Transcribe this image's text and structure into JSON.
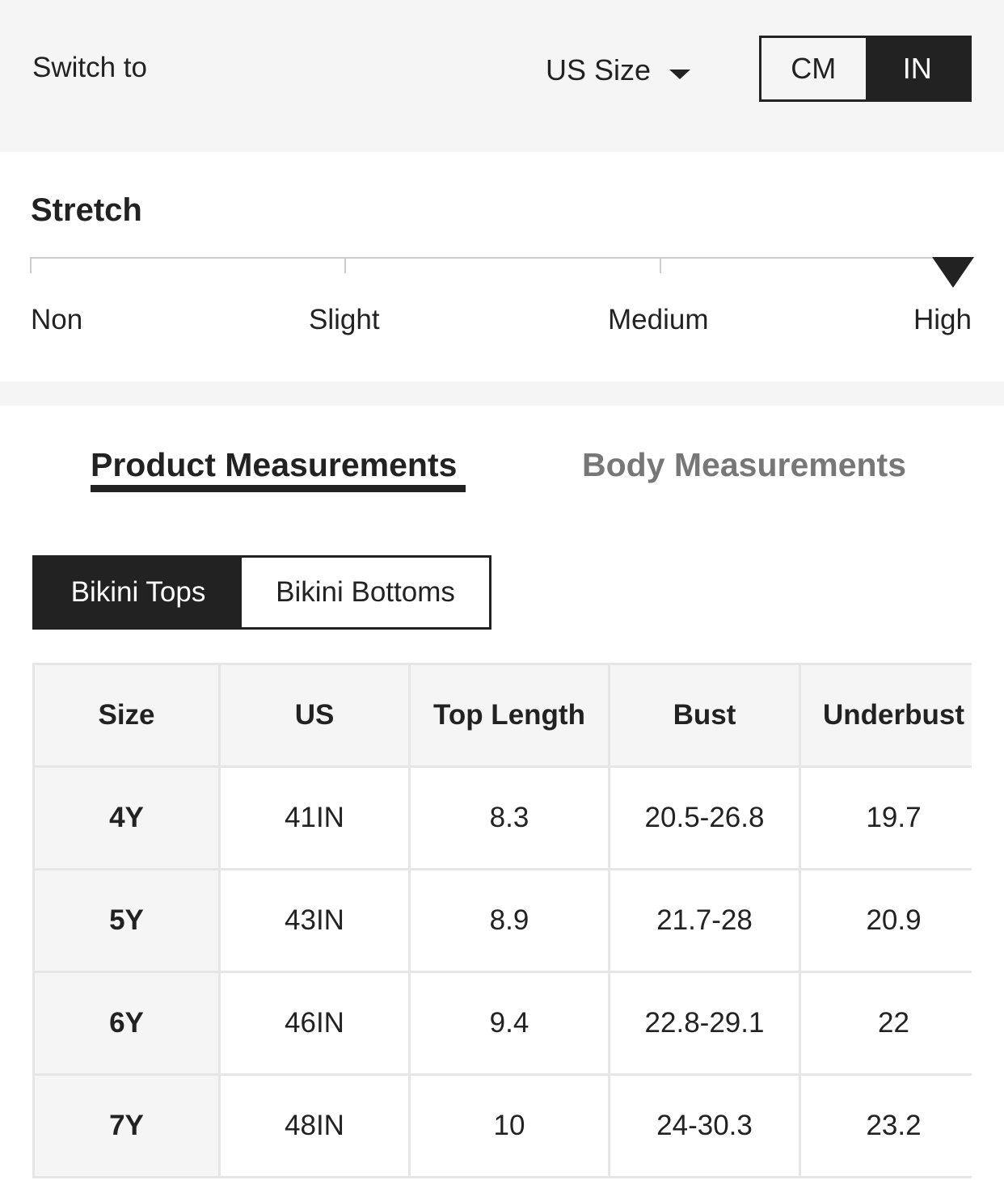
{
  "header": {
    "switch_label": "Switch to",
    "size_system": "US Size",
    "units": [
      "CM",
      "IN"
    ],
    "selected_unit": "IN"
  },
  "stretch": {
    "title": "Stretch",
    "levels": [
      "Non",
      "Slight",
      "Medium",
      "High"
    ],
    "selected": "High"
  },
  "tabs": {
    "product": "Product Measurements",
    "body": "Body Measurements",
    "active": "Product Measurements"
  },
  "categories": {
    "items": [
      "Bikini Tops",
      "Bikini Bottoms"
    ],
    "active": "Bikini Tops"
  },
  "table": {
    "headers": [
      "Size",
      "US",
      "Top Length",
      "Bust",
      "Underbust"
    ],
    "rows": [
      [
        "4Y",
        "41IN",
        "8.3",
        "20.5-26.8",
        "19.7"
      ],
      [
        "5Y",
        "43IN",
        "8.9",
        "21.7-28",
        "20.9"
      ],
      [
        "6Y",
        "46IN",
        "9.4",
        "22.8-29.1",
        "22"
      ],
      [
        "7Y",
        "48IN",
        "10",
        "24-30.3",
        "23.2"
      ]
    ]
  }
}
